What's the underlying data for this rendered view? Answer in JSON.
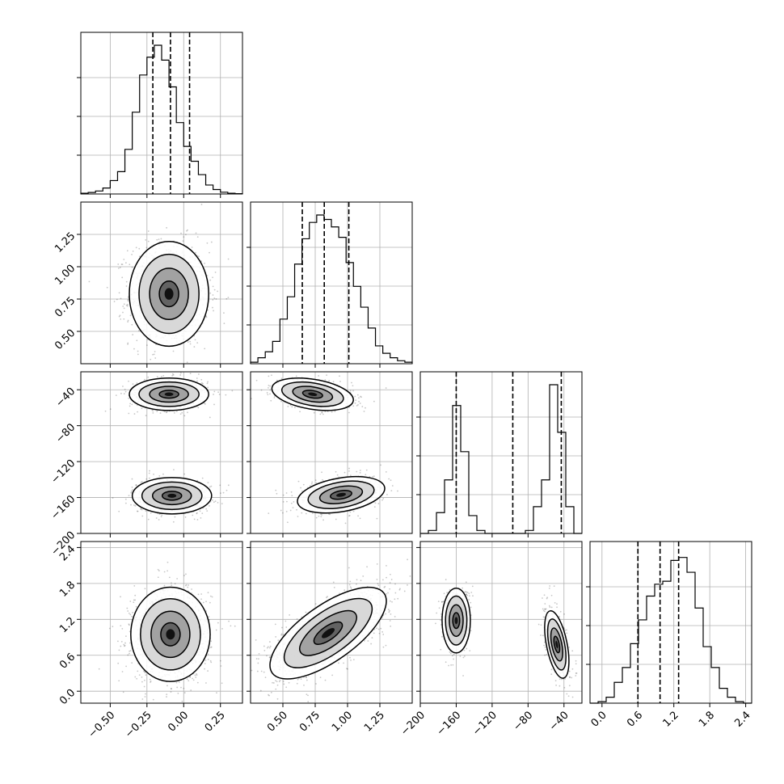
{
  "chart_data": {
    "type": "corner",
    "title": "",
    "grid": true,
    "params": [
      {
        "range": [
          -0.7,
          0.4
        ],
        "ticks": [
          -0.5,
          -0.25,
          0.0,
          0.25
        ],
        "tick_labels": [
          "−0.50",
          "−0.25",
          "0.00",
          "0.25"
        ],
        "quantiles": [
          -0.21,
          -0.09,
          0.04
        ],
        "hist": [
          0.005,
          0.01,
          0.02,
          0.04,
          0.09,
          0.15,
          0.3,
          0.55,
          0.8,
          0.92,
          1.0,
          0.9,
          0.72,
          0.48,
          0.32,
          0.22,
          0.13,
          0.06,
          0.03,
          0.012,
          0.005,
          0.002
        ]
      },
      {
        "range": [
          0.25,
          1.5
        ],
        "ticks": [
          0.5,
          0.75,
          1.0,
          1.25
        ],
        "tick_labels": [
          "0.50",
          "0.75",
          "1.00",
          "1.25"
        ],
        "quantiles": [
          0.65,
          0.82,
          1.01
        ],
        "hist": [
          0.01,
          0.04,
          0.08,
          0.15,
          0.3,
          0.45,
          0.67,
          0.84,
          0.95,
          1.0,
          0.97,
          0.92,
          0.85,
          0.68,
          0.52,
          0.38,
          0.24,
          0.12,
          0.07,
          0.04,
          0.02,
          0.01
        ]
      },
      {
        "range": [
          -200,
          -20
        ],
        "ticks": [
          -200,
          -160,
          -120,
          -80,
          -40
        ],
        "tick_labels": [
          "−200",
          "−160",
          "−120",
          "−80",
          "−40"
        ],
        "quantiles": [
          -160,
          -97,
          -43
        ],
        "hist": [
          0.0,
          0.02,
          0.14,
          0.36,
          0.86,
          0.55,
          0.12,
          0.02,
          0.0,
          0.0,
          0.0,
          0.0,
          0.0,
          0.02,
          0.18,
          0.36,
          1.0,
          0.68,
          0.18,
          0.0
        ]
      },
      {
        "range": [
          -0.2,
          2.5
        ],
        "ticks": [
          0.0,
          0.6,
          1.2,
          1.8,
          2.4
        ],
        "tick_labels": [
          "0.0",
          "0.6",
          "1.2",
          "1.8",
          "2.4"
        ],
        "quantiles": [
          0.6,
          0.97,
          1.28
        ],
        "hist": [
          0.0,
          0.01,
          0.04,
          0.14,
          0.24,
          0.4,
          0.56,
          0.72,
          0.8,
          0.82,
          0.96,
          0.98,
          0.88,
          0.64,
          0.38,
          0.24,
          0.1,
          0.04,
          0.01,
          0.0
        ]
      }
    ],
    "scatter_panels": [
      {
        "row": 1,
        "col": 0,
        "clusters": [
          {
            "mx": -0.1,
            "my": 0.79,
            "sx": 0.12,
            "sy": 0.18,
            "rho": 0.0,
            "w": 1.0
          }
        ]
      },
      {
        "row": 2,
        "col": 0,
        "clusters": [
          {
            "mx": -0.1,
            "my": -45,
            "sx": 0.12,
            "sy": 8,
            "rho": 0.0,
            "w": 0.5
          },
          {
            "mx": -0.08,
            "my": -158,
            "sx": 0.12,
            "sy": 9,
            "rho": 0.0,
            "w": 0.5
          }
        ]
      },
      {
        "row": 2,
        "col": 1,
        "clusters": [
          {
            "mx": 0.73,
            "my": -45,
            "sx": 0.14,
            "sy": 8,
            "rho": -0.35,
            "w": 0.5
          },
          {
            "mx": 0.95,
            "my": -157,
            "sx": 0.15,
            "sy": 9,
            "rho": 0.35,
            "w": 0.5
          }
        ]
      },
      {
        "row": 3,
        "col": 0,
        "clusters": [
          {
            "mx": -0.09,
            "my": 0.95,
            "sx": 0.12,
            "sy": 0.35,
            "rho": 0.0,
            "w": 1.0
          }
        ]
      },
      {
        "row": 3,
        "col": 1,
        "clusters": [
          {
            "mx": 0.85,
            "my": 0.97,
            "sx": 0.2,
            "sy": 0.34,
            "rho": 0.7,
            "w": 1.0
          }
        ]
      },
      {
        "row": 3,
        "col": 2,
        "clusters": [
          {
            "mx": -160,
            "my": 1.18,
            "sx": 7,
            "sy": 0.24,
            "rho": 0.0,
            "w": 0.5
          },
          {
            "mx": -48,
            "my": 0.78,
            "sx": 6,
            "sy": 0.25,
            "rho": -0.5,
            "w": 0.5
          }
        ]
      }
    ],
    "contour_scales": [
      0.55,
      1.1,
      1.7,
      2.25
    ]
  }
}
